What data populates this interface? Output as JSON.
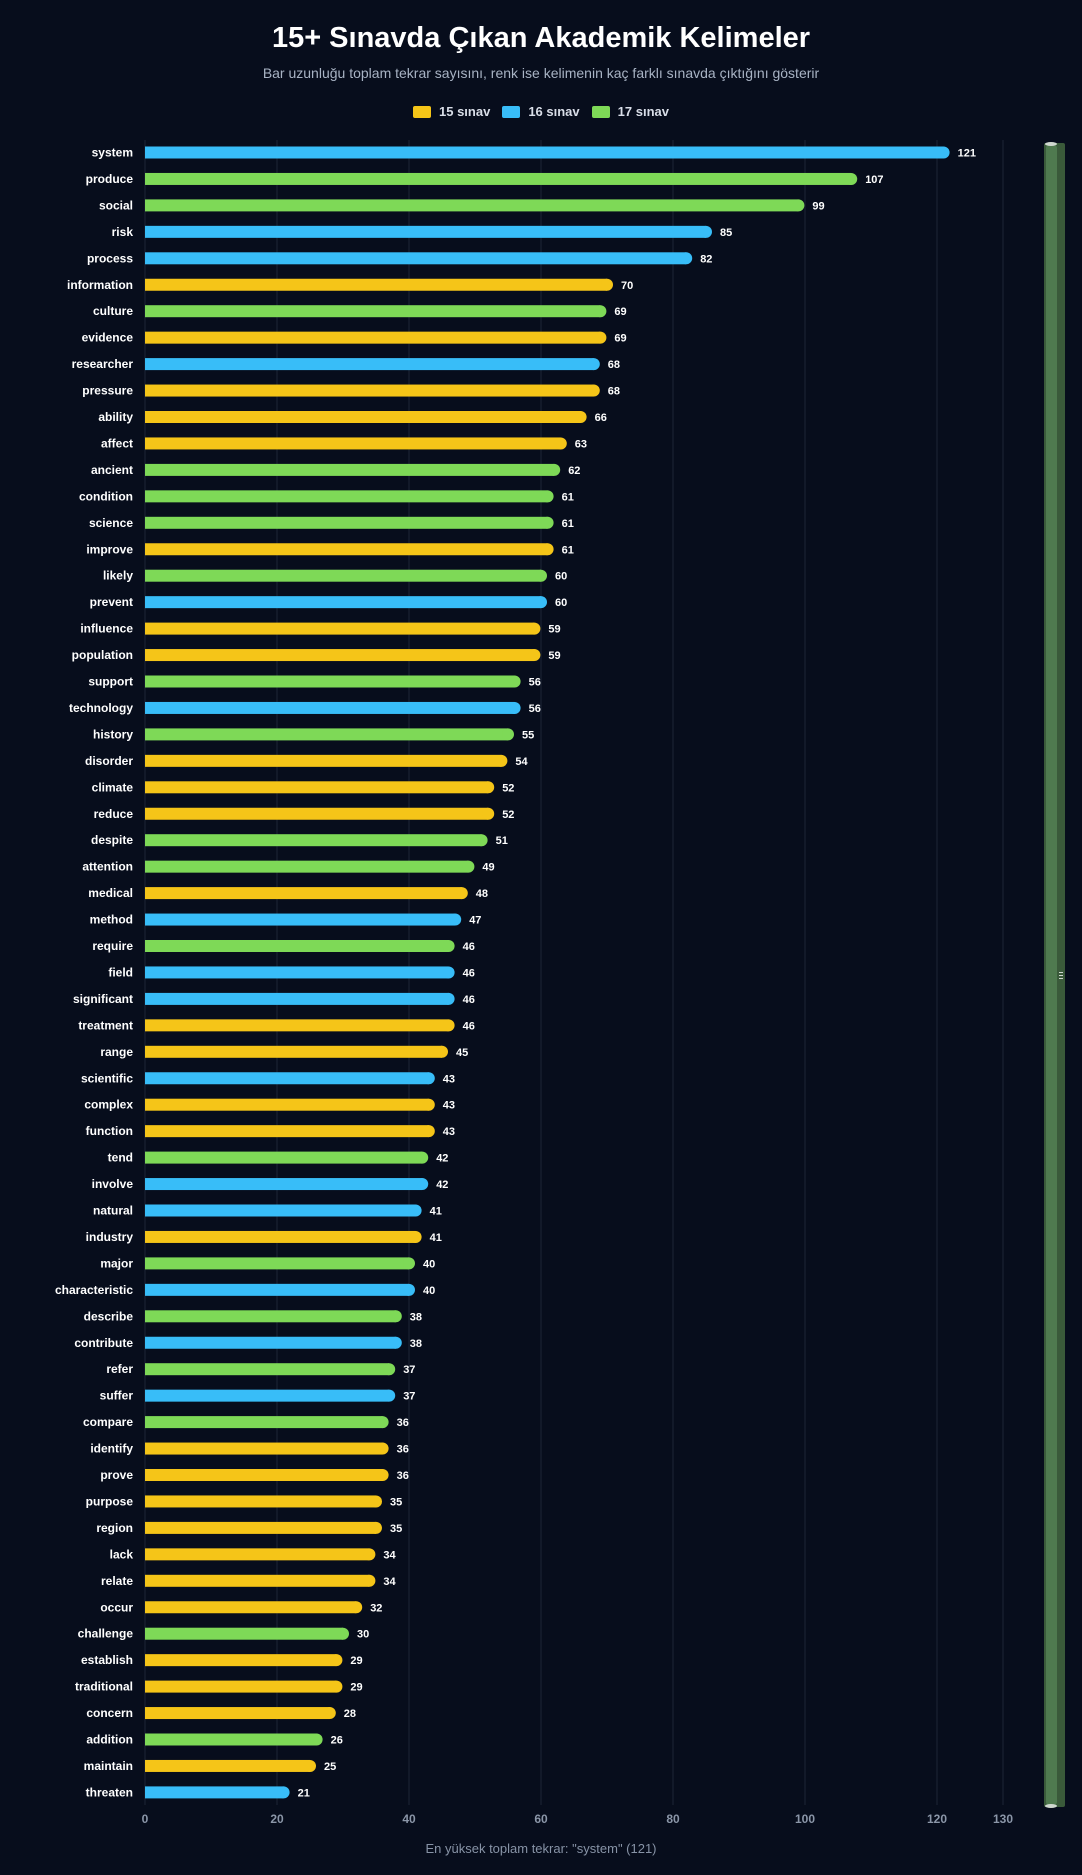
{
  "chart_data": {
    "type": "bar",
    "orientation": "horizontal",
    "title": "15+ Sınavda Çıkan Akademik Kelimeler",
    "subtitle": "Bar uzunluğu toplam tekrar sayısını, renk ise kelimenin kaç farklı sınavda çıktığını gösterir",
    "legend": [
      {
        "label": "15 sınav",
        "color": "#f5c518"
      },
      {
        "label": "16 sınav",
        "color": "#38bdf8"
      },
      {
        "label": "17 sınav",
        "color": "#7ed957"
      }
    ],
    "legend_position": "top-center",
    "xlim": [
      0,
      130
    ],
    "x_ticks": [
      0,
      20,
      40,
      60,
      80,
      100,
      120,
      130
    ],
    "grid": true,
    "bars": [
      {
        "word": "system",
        "value": 121,
        "group": "16 sınav"
      },
      {
        "word": "produce",
        "value": 107,
        "group": "17 sınav"
      },
      {
        "word": "social",
        "value": 99,
        "group": "17 sınav"
      },
      {
        "word": "risk",
        "value": 85,
        "group": "16 sınav"
      },
      {
        "word": "process",
        "value": 82,
        "group": "16 sınav"
      },
      {
        "word": "information",
        "value": 70,
        "group": "15 sınav"
      },
      {
        "word": "culture",
        "value": 69,
        "group": "17 sınav"
      },
      {
        "word": "evidence",
        "value": 69,
        "group": "15 sınav"
      },
      {
        "word": "researcher",
        "value": 68,
        "group": "16 sınav"
      },
      {
        "word": "pressure",
        "value": 68,
        "group": "15 sınav"
      },
      {
        "word": "ability",
        "value": 66,
        "group": "15 sınav"
      },
      {
        "word": "affect",
        "value": 63,
        "group": "15 sınav"
      },
      {
        "word": "ancient",
        "value": 62,
        "group": "17 sınav"
      },
      {
        "word": "condition",
        "value": 61,
        "group": "17 sınav"
      },
      {
        "word": "science",
        "value": 61,
        "group": "17 sınav"
      },
      {
        "word": "improve",
        "value": 61,
        "group": "15 sınav"
      },
      {
        "word": "likely",
        "value": 60,
        "group": "17 sınav"
      },
      {
        "word": "prevent",
        "value": 60,
        "group": "16 sınav"
      },
      {
        "word": "influence",
        "value": 59,
        "group": "15 sınav"
      },
      {
        "word": "population",
        "value": 59,
        "group": "15 sınav"
      },
      {
        "word": "support",
        "value": 56,
        "group": "17 sınav"
      },
      {
        "word": "technology",
        "value": 56,
        "group": "16 sınav"
      },
      {
        "word": "history",
        "value": 55,
        "group": "17 sınav"
      },
      {
        "word": "disorder",
        "value": 54,
        "group": "15 sınav"
      },
      {
        "word": "climate",
        "value": 52,
        "group": "15 sınav"
      },
      {
        "word": "reduce",
        "value": 52,
        "group": "15 sınav"
      },
      {
        "word": "despite",
        "value": 51,
        "group": "17 sınav"
      },
      {
        "word": "attention",
        "value": 49,
        "group": "17 sınav"
      },
      {
        "word": "medical",
        "value": 48,
        "group": "15 sınav"
      },
      {
        "word": "method",
        "value": 47,
        "group": "16 sınav"
      },
      {
        "word": "require",
        "value": 46,
        "group": "17 sınav"
      },
      {
        "word": "field",
        "value": 46,
        "group": "16 sınav"
      },
      {
        "word": "significant",
        "value": 46,
        "group": "16 sınav"
      },
      {
        "word": "treatment",
        "value": 46,
        "group": "15 sınav"
      },
      {
        "word": "range",
        "value": 45,
        "group": "15 sınav"
      },
      {
        "word": "scientific",
        "value": 43,
        "group": "16 sınav"
      },
      {
        "word": "complex",
        "value": 43,
        "group": "15 sınav"
      },
      {
        "word": "function",
        "value": 43,
        "group": "15 sınav"
      },
      {
        "word": "tend",
        "value": 42,
        "group": "17 sınav"
      },
      {
        "word": "involve",
        "value": 42,
        "group": "16 sınav"
      },
      {
        "word": "natural",
        "value": 41,
        "group": "16 sınav"
      },
      {
        "word": "industry",
        "value": 41,
        "group": "15 sınav"
      },
      {
        "word": "major",
        "value": 40,
        "group": "17 sınav"
      },
      {
        "word": "characteristic",
        "value": 40,
        "group": "16 sınav"
      },
      {
        "word": "describe",
        "value": 38,
        "group": "17 sınav"
      },
      {
        "word": "contribute",
        "value": 38,
        "group": "16 sınav"
      },
      {
        "word": "refer",
        "value": 37,
        "group": "17 sınav"
      },
      {
        "word": "suffer",
        "value": 37,
        "group": "16 sınav"
      },
      {
        "word": "compare",
        "value": 36,
        "group": "17 sınav"
      },
      {
        "word": "identify",
        "value": 36,
        "group": "15 sınav"
      },
      {
        "word": "prove",
        "value": 36,
        "group": "15 sınav"
      },
      {
        "word": "purpose",
        "value": 35,
        "group": "15 sınav"
      },
      {
        "word": "region",
        "value": 35,
        "group": "15 sınav"
      },
      {
        "word": "lack",
        "value": 34,
        "group": "15 sınav"
      },
      {
        "word": "relate",
        "value": 34,
        "group": "15 sınav"
      },
      {
        "word": "occur",
        "value": 32,
        "group": "15 sınav"
      },
      {
        "word": "challenge",
        "value": 30,
        "group": "17 sınav"
      },
      {
        "word": "establish",
        "value": 29,
        "group": "15 sınav"
      },
      {
        "word": "traditional",
        "value": 29,
        "group": "15 sınav"
      },
      {
        "word": "concern",
        "value": 28,
        "group": "15 sınav"
      },
      {
        "word": "addition",
        "value": 26,
        "group": "17 sınav"
      },
      {
        "word": "maintain",
        "value": 25,
        "group": "15 sınav"
      },
      {
        "word": "threaten",
        "value": 21,
        "group": "16 sınav"
      }
    ]
  },
  "footer": "En yüksek toplam tekrar: \"system\" (121)",
  "colors": {
    "background": "#070d1c",
    "grid": "#1c2536",
    "scrollbar_track": "#3a5a3a",
    "scrollbar_thumb": "#4f7a4f"
  }
}
